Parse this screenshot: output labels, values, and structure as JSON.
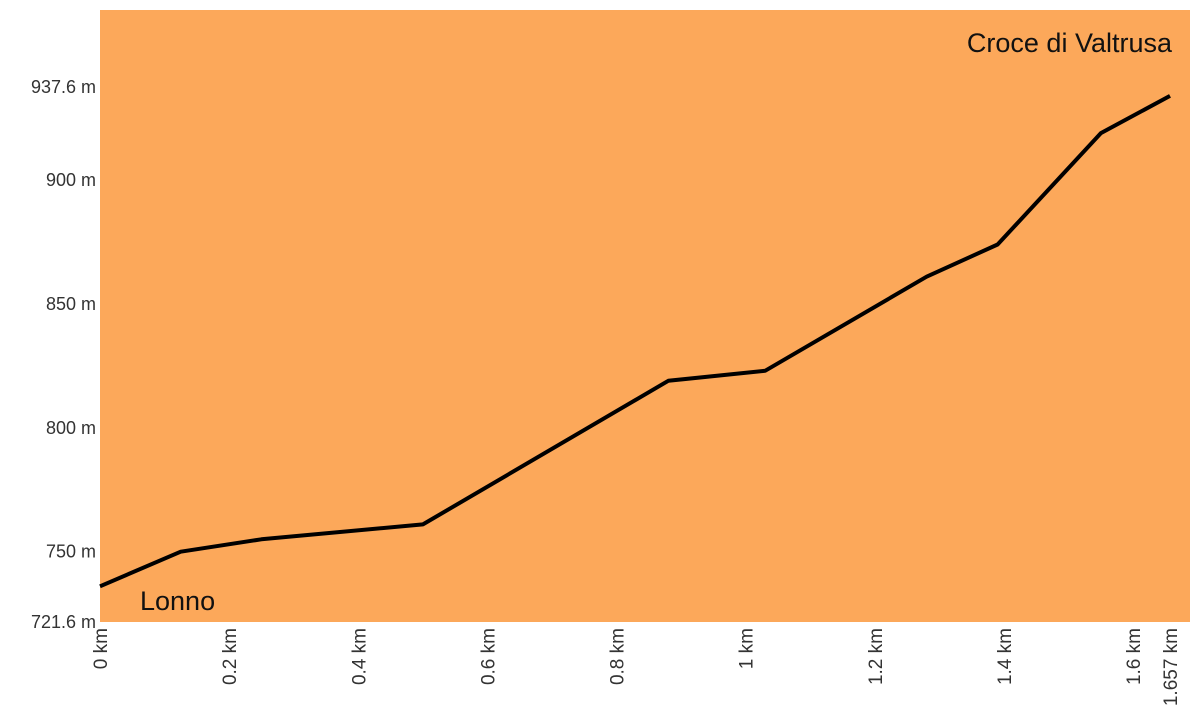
{
  "chart_data": {
    "type": "line",
    "x_unit": "km",
    "y_unit": "m",
    "xlim": [
      0,
      1.657
    ],
    "ylim": [
      721.6,
      937.6
    ],
    "x_ticks": [
      {
        "value": 0,
        "label": "0 km"
      },
      {
        "value": 0.2,
        "label": "0.2 km"
      },
      {
        "value": 0.4,
        "label": "0.4 km"
      },
      {
        "value": 0.6,
        "label": "0.6 km"
      },
      {
        "value": 0.8,
        "label": "0.8 km"
      },
      {
        "value": 1.0,
        "label": "1 km"
      },
      {
        "value": 1.2,
        "label": "1.2 km"
      },
      {
        "value": 1.4,
        "label": "1.4 km"
      },
      {
        "value": 1.6,
        "label": "1.6 km"
      },
      {
        "value": 1.657,
        "label": "1.657 km"
      }
    ],
    "y_ticks": [
      {
        "value": 721.6,
        "label": "721.6 m"
      },
      {
        "value": 750,
        "label": "750 m"
      },
      {
        "value": 800,
        "label": "800 m"
      },
      {
        "value": 850,
        "label": "850 m"
      },
      {
        "value": 900,
        "label": "900 m"
      },
      {
        "value": 937.6,
        "label": "937.6 m"
      }
    ],
    "series": [
      {
        "x": [
          0,
          0.125,
          0.25,
          0.5,
          0.88,
          1.03,
          1.28,
          1.39,
          1.55,
          1.657
        ],
        "y": [
          736,
          750,
          755,
          761,
          819,
          823,
          861,
          874,
          919,
          934
        ]
      }
    ],
    "annotations": [
      {
        "text": "Lonno",
        "anchor": "start"
      },
      {
        "text": "Croce di Valtrusa",
        "anchor": "end"
      }
    ],
    "colors": {
      "plot_background": "#fca85a",
      "line": "#000000"
    },
    "grid": false,
    "legend": "none"
  }
}
